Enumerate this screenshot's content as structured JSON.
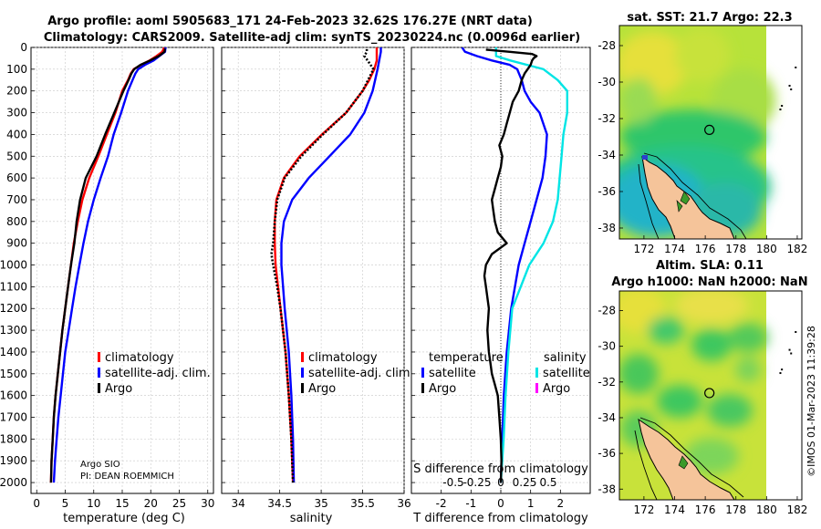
{
  "title_line1": "Argo profile: aoml 5905683_171 24-Feb-2023 32.62S 176.27E (NRT data)",
  "title_line2": "Climatology: CARS2009. Satellite-adj clim: synTS_20230224.nc (0.0096d earlier)",
  "colors": {
    "climatology": "#ff0000",
    "satellite": "#0000ff",
    "argo": "#000000",
    "sat_salinity": "#00e5e5",
    "argo_salinity": "#ff00ff",
    "land": "#f5c49a"
  },
  "depth_axis": {
    "range": [
      0,
      2050
    ],
    "ticks": [
      0,
      100,
      200,
      300,
      400,
      500,
      600,
      700,
      800,
      900,
      1000,
      1100,
      1200,
      1300,
      1400,
      1500,
      1600,
      1700,
      1800,
      1900,
      2000
    ]
  },
  "chart_data": [
    {
      "type": "line",
      "id": "temperature",
      "xlabel": "temperature (deg C)",
      "ylabel": "depth",
      "xlim": [
        -1,
        31
      ],
      "xticks": [
        0,
        5,
        10,
        15,
        20,
        25,
        30
      ],
      "legend": {
        "entries": [
          "climatology",
          "satellite-adj. clim.",
          "Argo"
        ],
        "placement": "middle-right"
      },
      "series": [
        {
          "name": "climatology",
          "color": "#ff0000",
          "depth": [
            2000,
            1900,
            1800,
            1700,
            1600,
            1500,
            1400,
            1300,
            1200,
            1100,
            1000,
            900,
            800,
            700,
            600,
            500,
            400,
            300,
            200,
            150,
            120,
            100,
            80,
            60,
            40,
            20,
            10,
            5,
            0
          ],
          "values": [
            2.5,
            2.6,
            2.8,
            3.0,
            3.3,
            3.7,
            4.1,
            4.5,
            5.0,
            5.5,
            6.0,
            6.5,
            7.2,
            8.0,
            9.2,
            10.8,
            12.3,
            13.8,
            15.0,
            16.0,
            16.5,
            17.0,
            18.3,
            19.8,
            21.0,
            22.0,
            22.2,
            22.3,
            22.3
          ]
        },
        {
          "name": "satellite-adj. clim.",
          "color": "#0000ff",
          "depth": [
            2000,
            1900,
            1800,
            1700,
            1600,
            1500,
            1400,
            1300,
            1200,
            1100,
            1000,
            900,
            800,
            700,
            600,
            500,
            400,
            300,
            200,
            150,
            120,
            100,
            80,
            60,
            40,
            20,
            0
          ],
          "values": [
            3.0,
            3.2,
            3.5,
            3.8,
            4.2,
            4.6,
            5.0,
            5.6,
            6.2,
            6.8,
            7.5,
            8.2,
            9.0,
            10.0,
            11.2,
            12.5,
            13.5,
            14.8,
            16.0,
            16.8,
            17.3,
            17.8,
            19.0,
            20.5,
            21.5,
            22.5,
            22.6
          ]
        },
        {
          "name": "Argo",
          "color": "#000000",
          "depth": [
            2000,
            1900,
            1800,
            1700,
            1600,
            1500,
            1400,
            1300,
            1200,
            1100,
            1000,
            900,
            800,
            700,
            600,
            500,
            400,
            300,
            200,
            150,
            120,
            100,
            80,
            60,
            40,
            20,
            5
          ],
          "values": [
            2.5,
            2.6,
            2.8,
            3.0,
            3.3,
            3.7,
            4.1,
            4.5,
            5.0,
            5.5,
            6.0,
            6.6,
            7.0,
            7.6,
            8.6,
            10.5,
            12.0,
            13.6,
            15.2,
            16.1,
            16.6,
            17.1,
            18.2,
            19.9,
            21.4,
            22.4,
            22.5
          ]
        }
      ]
    },
    {
      "type": "line",
      "id": "salinity",
      "xlabel": "salinity",
      "ylabel": "depth",
      "xlim": [
        33.8,
        36.0
      ],
      "xticks": [
        34,
        34.5,
        35,
        35.5,
        36
      ],
      "legend": {
        "entries": [
          "climatology",
          "satellite-adj. clim.",
          "Argo"
        ],
        "placement": "middle-right"
      },
      "series": [
        {
          "name": "climatology",
          "color": "#ff0000",
          "depth": [
            2000,
            1800,
            1600,
            1400,
            1200,
            1100,
            1000,
            900,
            800,
            700,
            600,
            500,
            400,
            300,
            200,
            150,
            100,
            60,
            20,
            0
          ],
          "values": [
            34.66,
            34.64,
            34.61,
            34.57,
            34.51,
            34.48,
            34.45,
            34.44,
            34.44,
            34.46,
            34.55,
            34.74,
            35.01,
            35.3,
            35.5,
            35.58,
            35.64,
            35.67,
            35.67,
            35.67
          ]
        },
        {
          "name": "satellite-adj. clim.",
          "color": "#0000ff",
          "depth": [
            2000,
            1800,
            1600,
            1400,
            1200,
            1100,
            1000,
            900,
            800,
            700,
            600,
            500,
            400,
            300,
            200,
            150,
            100,
            60,
            20,
            0
          ],
          "values": [
            34.67,
            34.66,
            34.64,
            34.61,
            34.56,
            34.54,
            34.52,
            34.52,
            34.55,
            34.65,
            34.85,
            35.1,
            35.35,
            35.52,
            35.62,
            35.65,
            35.68,
            35.7,
            35.72,
            35.72
          ]
        },
        {
          "name": "Argo",
          "color": "#000000",
          "depth": [
            2000,
            1800,
            1600,
            1400,
            1200,
            1100,
            1000,
            950,
            900,
            800,
            700,
            600,
            500,
            400,
            300,
            200,
            100,
            60,
            40,
            20,
            5
          ],
          "values": [
            34.66,
            34.64,
            34.61,
            34.57,
            34.51,
            34.47,
            34.42,
            34.4,
            34.42,
            34.44,
            34.47,
            34.56,
            34.76,
            35.02,
            35.3,
            35.5,
            35.63,
            35.56,
            35.52,
            35.55,
            35.55
          ]
        }
      ]
    },
    {
      "type": "line",
      "id": "difference",
      "xlabel": "T difference from climatology",
      "xlabel_top": "S difference from climatology",
      "xlim": [
        -3,
        3
      ],
      "xticks": [
        -2,
        -1,
        0,
        1,
        2
      ],
      "s_xticks": [
        -0.5,
        -0.25,
        0,
        0.25,
        0.5
      ],
      "s_tick_labels": [
        "-0.5",
        "-0.25",
        "0",
        "0.25",
        "0.5"
      ],
      "legend": {
        "placement": "middle",
        "temperature_heading": "temperature",
        "salinity_heading": "salinity",
        "t_entries": [
          "satellite",
          "Argo"
        ],
        "s_entries": [
          "satellite",
          "Argo"
        ]
      },
      "series": [
        {
          "name": "satellite (temperature)",
          "color": "#0000ff",
          "depth": [
            2000,
            1800,
            1600,
            1400,
            1200,
            1000,
            900,
            800,
            700,
            600,
            500,
            400,
            300,
            250,
            200,
            150,
            100,
            80,
            60,
            40,
            20,
            0
          ],
          "values": [
            0.0,
            0.05,
            0.1,
            0.2,
            0.35,
            0.6,
            0.8,
            1.0,
            1.2,
            1.4,
            1.5,
            1.55,
            1.3,
            1.0,
            0.8,
            0.7,
            0.55,
            0.3,
            -0.3,
            -0.8,
            -1.2,
            -1.3
          ]
        },
        {
          "name": "satellite (salinity)",
          "color": "#00e5e5",
          "depth": [
            2000,
            1800,
            1600,
            1400,
            1200,
            1000,
            900,
            800,
            700,
            600,
            500,
            400,
            300,
            200,
            150,
            100,
            60,
            40,
            20,
            0
          ],
          "values": [
            0.0,
            0.03,
            0.05,
            0.08,
            0.12,
            0.3,
            0.45,
            0.55,
            0.6,
            0.62,
            0.64,
            0.66,
            0.7,
            0.7,
            0.6,
            0.45,
            0.1,
            -0.05,
            -0.05,
            -0.05
          ]
        },
        {
          "name": "Argo (temperature)",
          "color": "#000000",
          "depth": [
            2000,
            1900,
            1800,
            1700,
            1600,
            1550,
            1500,
            1450,
            1400,
            1300,
            1200,
            1100,
            1050,
            1000,
            950,
            900,
            850,
            800,
            750,
            700,
            650,
            600,
            550,
            500,
            450,
            400,
            350,
            300,
            250,
            200,
            150,
            120,
            100,
            80,
            60,
            50,
            40,
            30,
            20,
            10
          ],
          "values": [
            0.0,
            0.02,
            0.0,
            -0.05,
            -0.1,
            -0.2,
            -0.3,
            -0.35,
            -0.4,
            -0.45,
            -0.4,
            -0.5,
            -0.55,
            -0.5,
            -0.3,
            0.2,
            -0.1,
            -0.2,
            -0.25,
            -0.3,
            -0.2,
            -0.1,
            0.0,
            0.05,
            -0.05,
            0.1,
            0.2,
            0.3,
            0.4,
            0.6,
            0.7,
            0.8,
            0.9,
            1.0,
            1.05,
            1.1,
            1.2,
            1.05,
            0.3,
            -0.5
          ]
        },
        {
          "name": "Argo (salinity)",
          "color": "#ff00ff",
          "depth": [],
          "values": []
        }
      ]
    },
    {
      "type": "heatmap",
      "id": "sst_map",
      "title": "sat. SST: 21.7 Argo: 22.3",
      "xlim": [
        170.4,
        182.3
      ],
      "ylim": [
        -38.6,
        -26.9
      ],
      "xticks": [
        172,
        174,
        176,
        178,
        180,
        182
      ],
      "yticks": [
        -28,
        -30,
        -32,
        -34,
        -36,
        -38
      ],
      "float_position": [
        176.27,
        -32.62
      ]
    },
    {
      "type": "heatmap",
      "id": "sla_map",
      "title_line1": "Altim. SLA: 0.11",
      "title_line2": "Argo h1000: NaN h2000: NaN",
      "xlim": [
        170.4,
        182.3
      ],
      "ylim": [
        -38.6,
        -26.9
      ],
      "xticks": [
        172,
        174,
        176,
        178,
        180,
        182
      ],
      "yticks": [
        -28,
        -30,
        -32,
        -34,
        -36,
        -38
      ],
      "float_position": [
        176.27,
        -32.62
      ]
    }
  ],
  "annotations": {
    "pi_line1": "Argo SIO",
    "pi_line2": "PI: DEAN ROEMMICH",
    "credit": "©IMOS 01-Mar-2023 11:39:28"
  }
}
